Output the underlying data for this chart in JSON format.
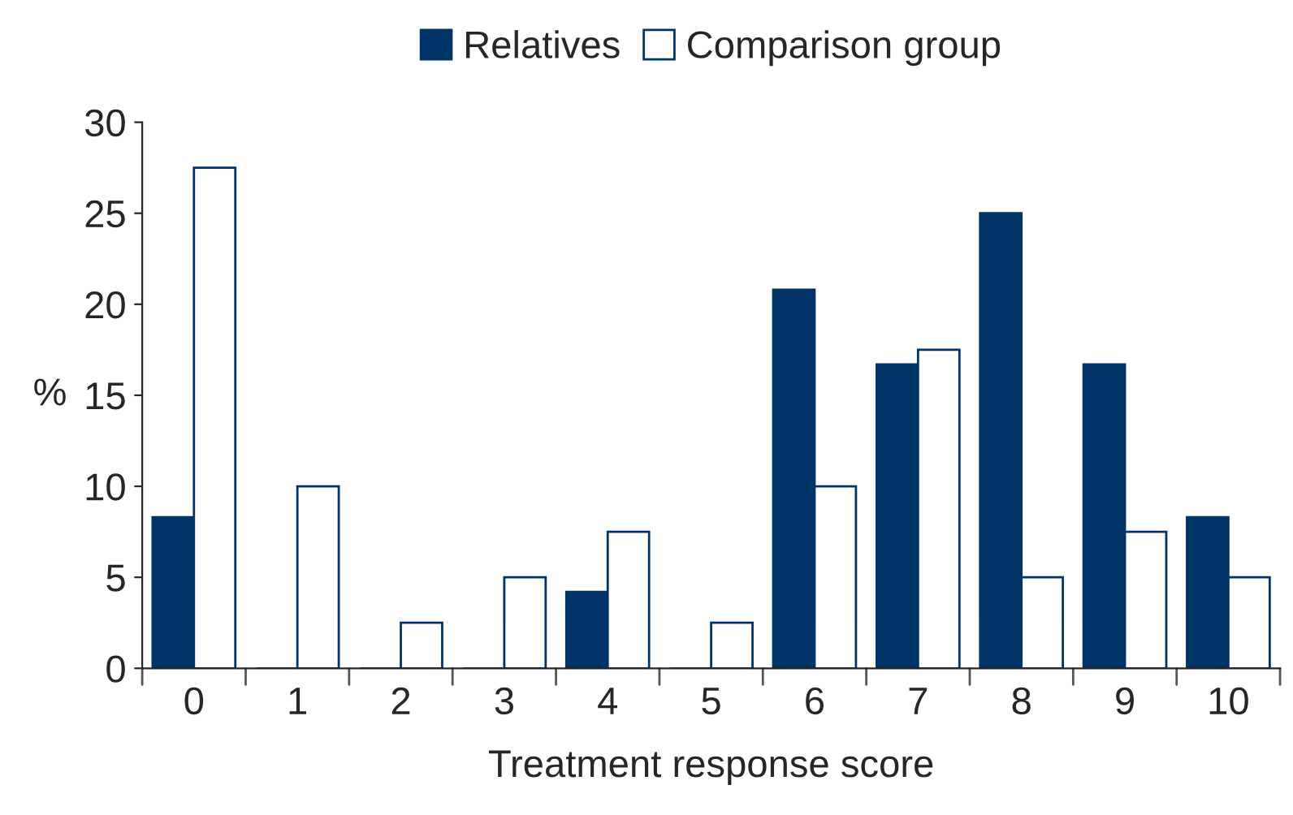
{
  "chart_data": {
    "type": "bar",
    "xlabel": "Treatment response score",
    "ylabel": "%",
    "categories": [
      "0",
      "1",
      "2",
      "3",
      "4",
      "5",
      "6",
      "7",
      "8",
      "9",
      "10"
    ],
    "series": [
      {
        "name": "Relatives",
        "color": "#003366",
        "values": [
          8.3,
          0,
          0,
          0,
          4.2,
          0,
          20.8,
          16.7,
          25,
          16.7,
          8.3
        ]
      },
      {
        "name": "Comparison group",
        "color": "#ffffff",
        "values": [
          27.5,
          10,
          2.5,
          5,
          7.5,
          2.5,
          10,
          17.5,
          5,
          7.5,
          5
        ]
      }
    ],
    "ylim": [
      0,
      30
    ],
    "yticks": [
      0,
      5,
      10,
      15,
      20,
      25,
      30
    ],
    "grid": false,
    "legend": "top"
  }
}
